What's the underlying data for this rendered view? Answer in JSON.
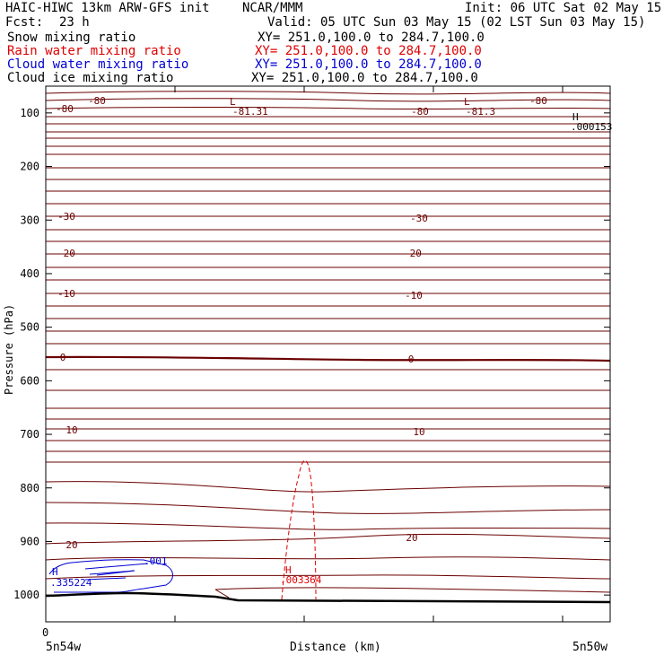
{
  "header": {
    "model": "HAIC-HIWC 13km ARW-GFS init",
    "org": "NCAR/MMM",
    "init": "Init: 06 UTC Sat 02 May 15",
    "fcst_label": "Fcst:",
    "fcst_value": "23 h",
    "valid": "Valid: 05 UTC Sun 03 May 15 (02 LST Sun 03 May 15)"
  },
  "fields": [
    {
      "name": "Snow mixing ratio",
      "xy": "XY= 251.0,100.0 to 284.7,100.0",
      "color": "#000000"
    },
    {
      "name": "Rain water mixing ratio",
      "xy": "XY= 251.0,100.0 to 284.7,100.0",
      "color": "#e00000"
    },
    {
      "name": "Cloud water mixing ratio",
      "xy": "XY= 251.0,100.0 to 284.7,100.0",
      "color": "#0000d0"
    },
    {
      "name": "Cloud ice mixing ratio",
      "xy": "XY= 251.0,100.0 to 284.7,100.0",
      "color": "#000000"
    }
  ],
  "chart_data": {
    "type": "line",
    "xlabel": "Distance (km)",
    "ylabel": "Pressure (hPa)",
    "x_tick_zero": "0",
    "x_left_label": "5n54w",
    "x_right_label": "5n50w",
    "ylim": [
      1050,
      50
    ],
    "yticks": [
      100,
      200,
      300,
      400,
      500,
      600,
      700,
      800,
      900,
      1000
    ],
    "temperature_contours": [
      {
        "value": "-80",
        "p": 80
      },
      {
        "value": "-30",
        "p": 300
      },
      {
        "value": "-20",
        "p": 370
      },
      {
        "value": "-10",
        "p": 450
      },
      {
        "value": "0",
        "p": 568
      },
      {
        "value": "10",
        "p": 697
      },
      {
        "value": "20",
        "p": 895
      }
    ],
    "extrema": [
      {
        "kind": "L",
        "value": "-81.31",
        "color": "#6b0000"
      },
      {
        "kind": "L",
        "value": "-81.3",
        "color": "#6b0000"
      },
      {
        "kind": "H",
        "value": ".000153",
        "color": "#000000"
      },
      {
        "kind": "H",
        "value": ".003364",
        "color": "#e00000"
      },
      {
        "kind": "H",
        "value": ".335224",
        "color": "#0000d0"
      }
    ],
    "cloud_water_contour": ".001",
    "colors": {
      "temperature": "#6b0000",
      "rain": "#e00000",
      "cloud_water": "#0000d0",
      "terrain": "#000000"
    }
  }
}
